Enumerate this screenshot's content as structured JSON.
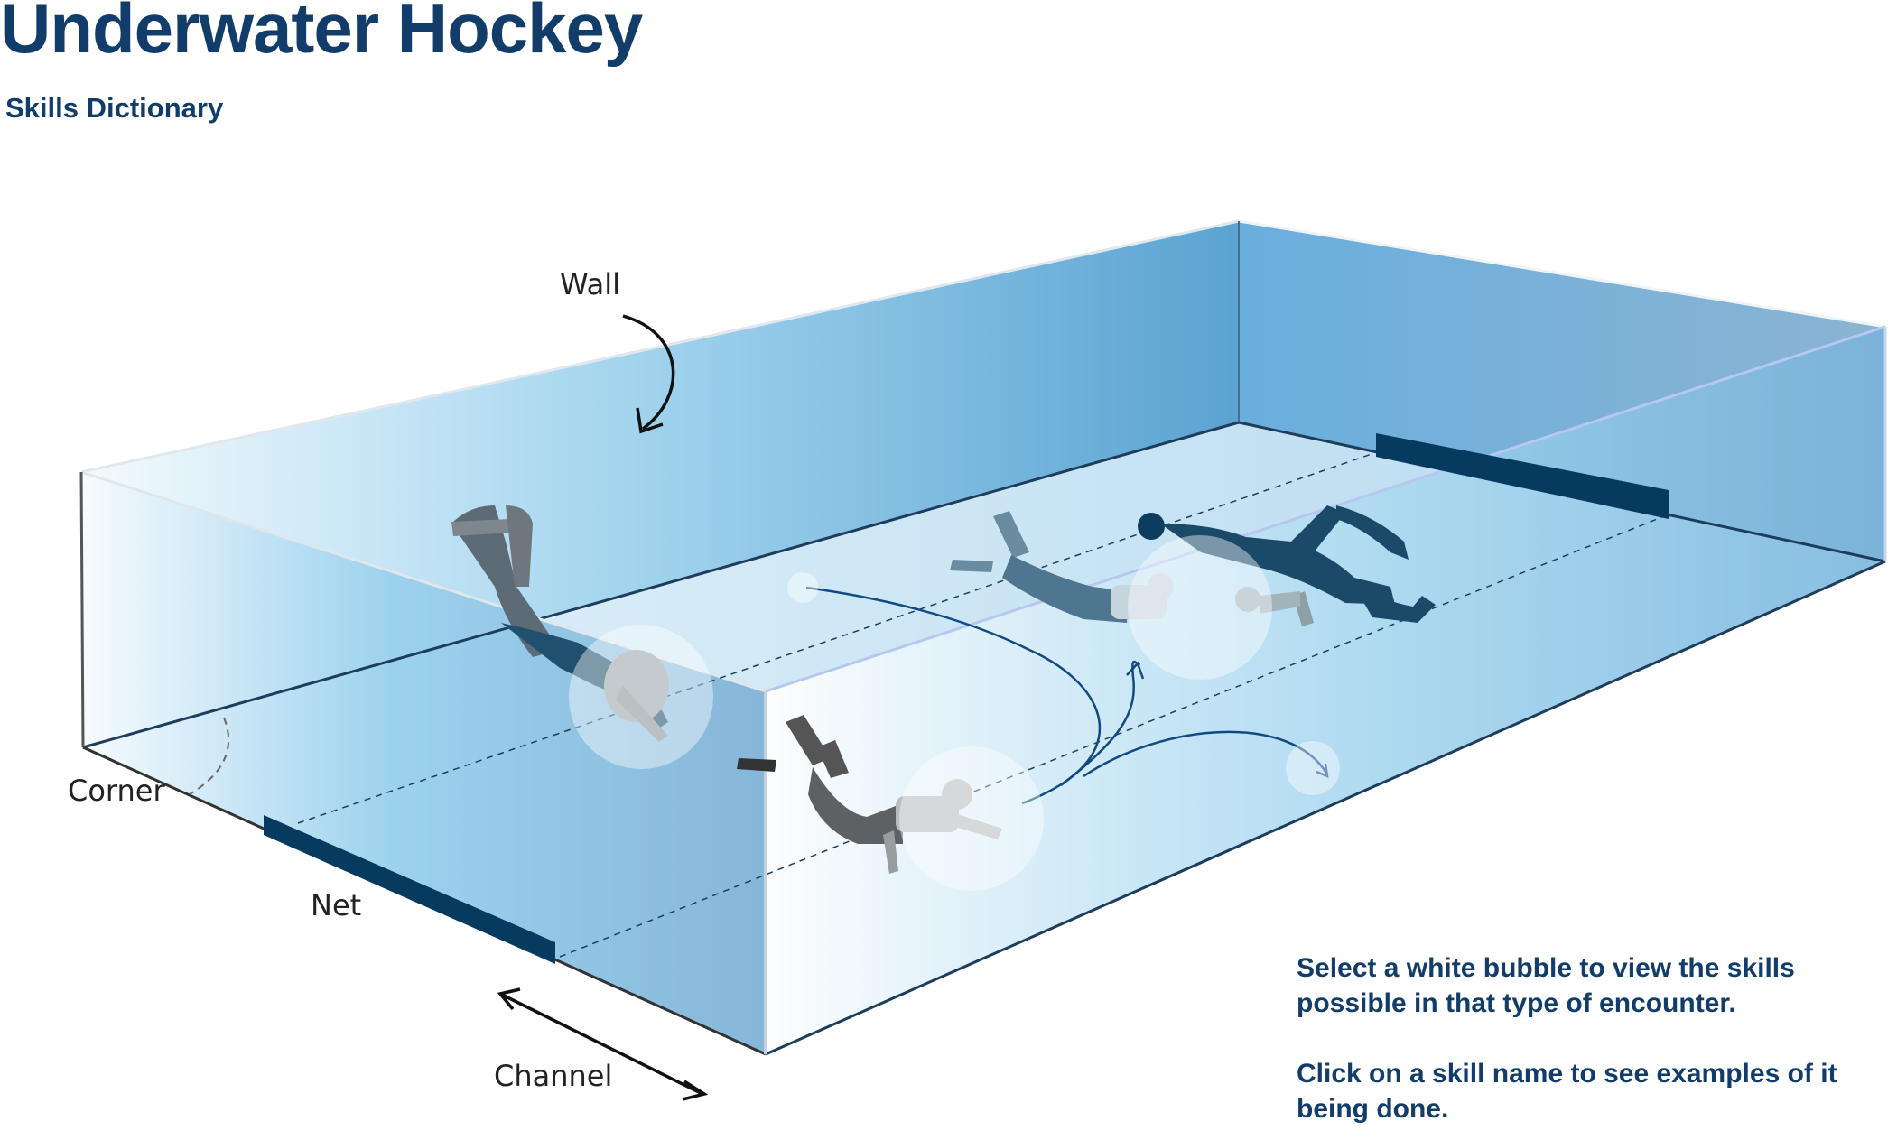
{
  "header": {
    "title": "Underwater Hockey",
    "subtitle": "Skills Dictionary"
  },
  "labels": {
    "wall": "Wall",
    "corner": "Corner",
    "net": "Net",
    "channel": "Channel"
  },
  "instructions": {
    "bubbles": "Select a white bubble to view the skills possible in that type of encounter.",
    "skills": "Click on a skill name to see examples of it being done."
  },
  "colors": {
    "title": "#123d6a",
    "water_light": "#e8f4fb",
    "water_mid": "#8ccbe9",
    "water_deep": "#4a98c7",
    "net": "#063a5e",
    "swimmer_dark": "#1d4a68",
    "swimmer_gray": "#6b6e70",
    "path": "#0f4a82",
    "bubble": "#ffffff"
  },
  "icons": {
    "wall_arrow": "curved-arrow-icon",
    "channel_arrow": "double-arrow-icon",
    "corner_arc": "dashed-arc-icon",
    "bubble": "circle-icon",
    "swimmer": "diver-silhouette-icon"
  }
}
